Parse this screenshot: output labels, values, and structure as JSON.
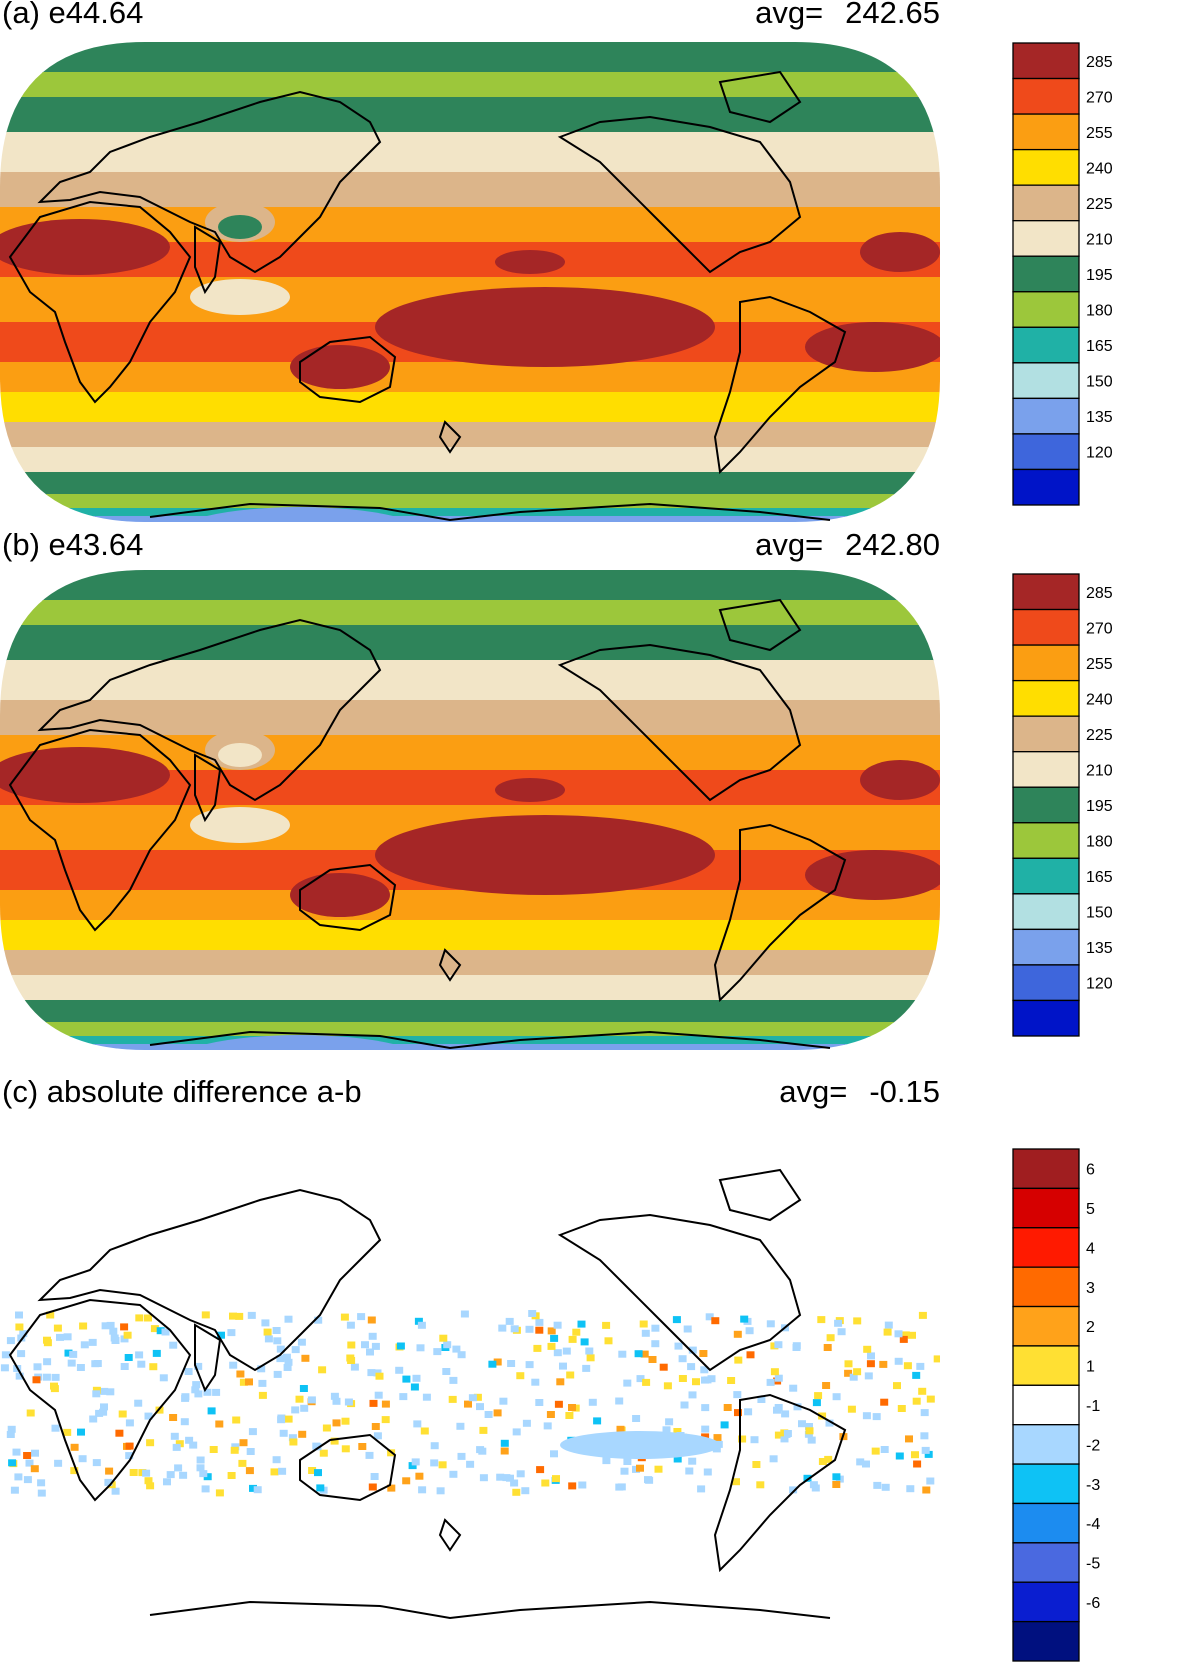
{
  "panels": [
    {
      "title": "(a) e44.64",
      "avg_label": "avg=",
      "avg_value": "242.65",
      "colorbar": {
        "colors": [
          "#a52626",
          "#ef4a1b",
          "#fb9e12",
          "#ffde00",
          "#dcb58a",
          "#f2e5c7",
          "#2e845a",
          "#9cc73b",
          "#20b1a6",
          "#b2e0e2",
          "#7aa1ec",
          "#3e66dc",
          "#0014c8"
        ],
        "labels": [
          "285",
          "270",
          "255",
          "240",
          "225",
          "210",
          "195",
          "180",
          "165",
          "150",
          "135",
          "120"
        ]
      }
    },
    {
      "title": "(b) e43.64",
      "avg_label": "avg=",
      "avg_value": "242.80",
      "colorbar": {
        "colors": [
          "#a52626",
          "#ef4a1b",
          "#fb9e12",
          "#ffde00",
          "#dcb58a",
          "#f2e5c7",
          "#2e845a",
          "#9cc73b",
          "#20b1a6",
          "#b2e0e2",
          "#7aa1ec",
          "#3e66dc",
          "#0014c8"
        ],
        "labels": [
          "285",
          "270",
          "255",
          "240",
          "225",
          "210",
          "195",
          "180",
          "165",
          "150",
          "135",
          "120"
        ]
      }
    },
    {
      "title": "(c) absolute difference a-b",
      "avg_label": "avg=",
      "avg_value": "-0.15",
      "colorbar": {
        "colors": [
          "#a01e20",
          "#d60000",
          "#ff1a00",
          "#ff6a00",
          "#ffa21a",
          "#ffe033",
          "#ffffff",
          "#a8d7ff",
          "#0ec2f5",
          "#1c8cf0",
          "#4a69e0",
          "#0a1ed0",
          "#00107f"
        ],
        "labels": [
          "6",
          "5",
          "4",
          "3",
          "2",
          "1",
          "-1",
          "-2",
          "-3",
          "-4",
          "-5",
          "-6"
        ]
      }
    }
  ]
}
